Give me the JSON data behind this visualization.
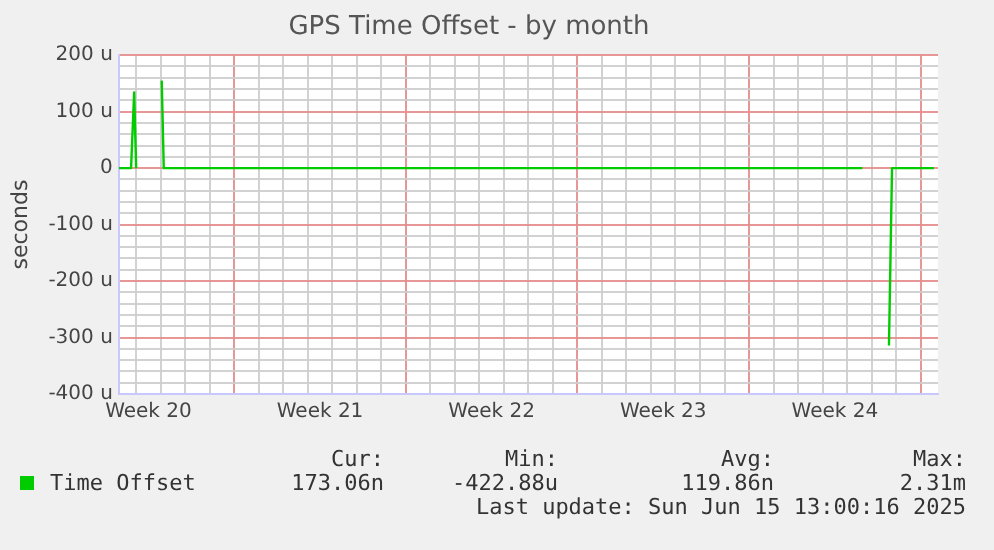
{
  "chart_data": {
    "type": "line",
    "title": "GPS Time Offset - by month",
    "ylabel": "seconds",
    "x": [
      "2025-05-13T07:00",
      "2025-05-13T19:00",
      "2025-05-13T22:00",
      "2025-05-14T00:00",
      "2025-05-14T02:00",
      "2025-05-15T00:00",
      "2025-05-15T01:00",
      "2025-05-15T03:00",
      "2025-06-12T15:00",
      "2025-06-12T17:00",
      "2025-06-13T16:00",
      "2025-06-13T17:00",
      "2025-06-13T20:00",
      "2025-06-15T13:00"
    ],
    "series": [
      {
        "name": "Time Offset",
        "color": "#00cc00",
        "values": [
          0,
          0,
          134,
          0,
          null,
          null,
          155,
          0,
          0,
          null,
          null,
          -314,
          0,
          0
        ]
      }
    ],
    "xlim": [
      "2025-05-13T07:00",
      "2025-06-15T17:00"
    ],
    "xticks": [
      {
        "value": "2025-05-14",
        "label": null
      },
      {
        "value": "2025-05-14T12:00",
        "label": "Week 20"
      },
      {
        "value": "2025-05-15",
        "label": null
      },
      {
        "value": "2025-05-16",
        "label": null
      },
      {
        "value": "2025-05-17",
        "label": null
      },
      {
        "value": "2025-05-18",
        "label": null
      },
      {
        "value": "2025-05-19",
        "label": null
      },
      {
        "value": "2025-05-20",
        "label": null
      },
      {
        "value": "2025-05-21",
        "label": null
      },
      {
        "value": "2025-05-21T12:00",
        "label": "Week 21"
      },
      {
        "value": "2025-05-22",
        "label": null
      },
      {
        "value": "2025-05-23",
        "label": null
      },
      {
        "value": "2025-05-24",
        "label": null
      },
      {
        "value": "2025-05-25",
        "label": null
      },
      {
        "value": "2025-05-26",
        "label": null
      },
      {
        "value": "2025-05-27",
        "label": null
      },
      {
        "value": "2025-05-28",
        "label": null
      },
      {
        "value": "2025-05-28T12:00",
        "label": "Week 22"
      },
      {
        "value": "2025-05-29",
        "label": null
      },
      {
        "value": "2025-05-30",
        "label": null
      },
      {
        "value": "2025-05-31",
        "label": null
      },
      {
        "value": "2025-06-01",
        "label": null
      },
      {
        "value": "2025-06-02",
        "label": null
      },
      {
        "value": "2025-06-03",
        "label": null
      },
      {
        "value": "2025-06-04",
        "label": null
      },
      {
        "value": "2025-06-04T12:00",
        "label": "Week 23"
      },
      {
        "value": "2025-06-05",
        "label": null
      },
      {
        "value": "2025-06-06",
        "label": null
      },
      {
        "value": "2025-06-07",
        "label": null
      },
      {
        "value": "2025-06-08",
        "label": null
      },
      {
        "value": "2025-06-09",
        "label": null
      },
      {
        "value": "2025-06-10",
        "label": null
      },
      {
        "value": "2025-06-11",
        "label": null
      },
      {
        "value": "2025-06-11T12:00",
        "label": "Week 24"
      },
      {
        "value": "2025-06-12",
        "label": null
      },
      {
        "value": "2025-06-13",
        "label": null
      },
      {
        "value": "2025-06-14",
        "label": null
      },
      {
        "value": "2025-06-15",
        "label": null
      }
    ],
    "ylim": [
      -400,
      200
    ],
    "yticks": [
      {
        "value": -400,
        "label": "-400 u"
      },
      {
        "value": -380,
        "label": null
      },
      {
        "value": -360,
        "label": null
      },
      {
        "value": -340,
        "label": null
      },
      {
        "value": -320,
        "label": null
      },
      {
        "value": -300,
        "label": "-300 u"
      },
      {
        "value": -280,
        "label": null
      },
      {
        "value": -260,
        "label": null
      },
      {
        "value": -240,
        "label": null
      },
      {
        "value": -220,
        "label": null
      },
      {
        "value": -200,
        "label": "-200 u"
      },
      {
        "value": -180,
        "label": null
      },
      {
        "value": -160,
        "label": null
      },
      {
        "value": -140,
        "label": null
      },
      {
        "value": -120,
        "label": null
      },
      {
        "value": -100,
        "label": "-100 u"
      },
      {
        "value": -80,
        "label": null
      },
      {
        "value": -60,
        "label": null
      },
      {
        "value": -40,
        "label": null
      },
      {
        "value": -20,
        "label": null
      },
      {
        "value": 0,
        "label": "0"
      },
      {
        "value": 20,
        "label": null
      },
      {
        "value": 40,
        "label": null
      },
      {
        "value": 60,
        "label": null
      },
      {
        "value": 80,
        "label": null
      },
      {
        "value": 100,
        "label": "100 u"
      },
      {
        "value": 120,
        "label": null
      },
      {
        "value": 140,
        "label": null
      },
      {
        "value": 160,
        "label": null
      },
      {
        "value": 180,
        "label": null
      },
      {
        "value": 200,
        "label": "200 u"
      }
    ],
    "grid": true,
    "legend": "bottom left",
    "marker": "none",
    "line_style": "solid",
    "annotations": [
      "Cur:",
      "Min:",
      "Avg:",
      "Max:",
      "173.06n",
      "-422.88u",
      "119.86n",
      "2.31m",
      "Last update: Sun Jun 15 13:00:16 2025"
    ]
  }
}
